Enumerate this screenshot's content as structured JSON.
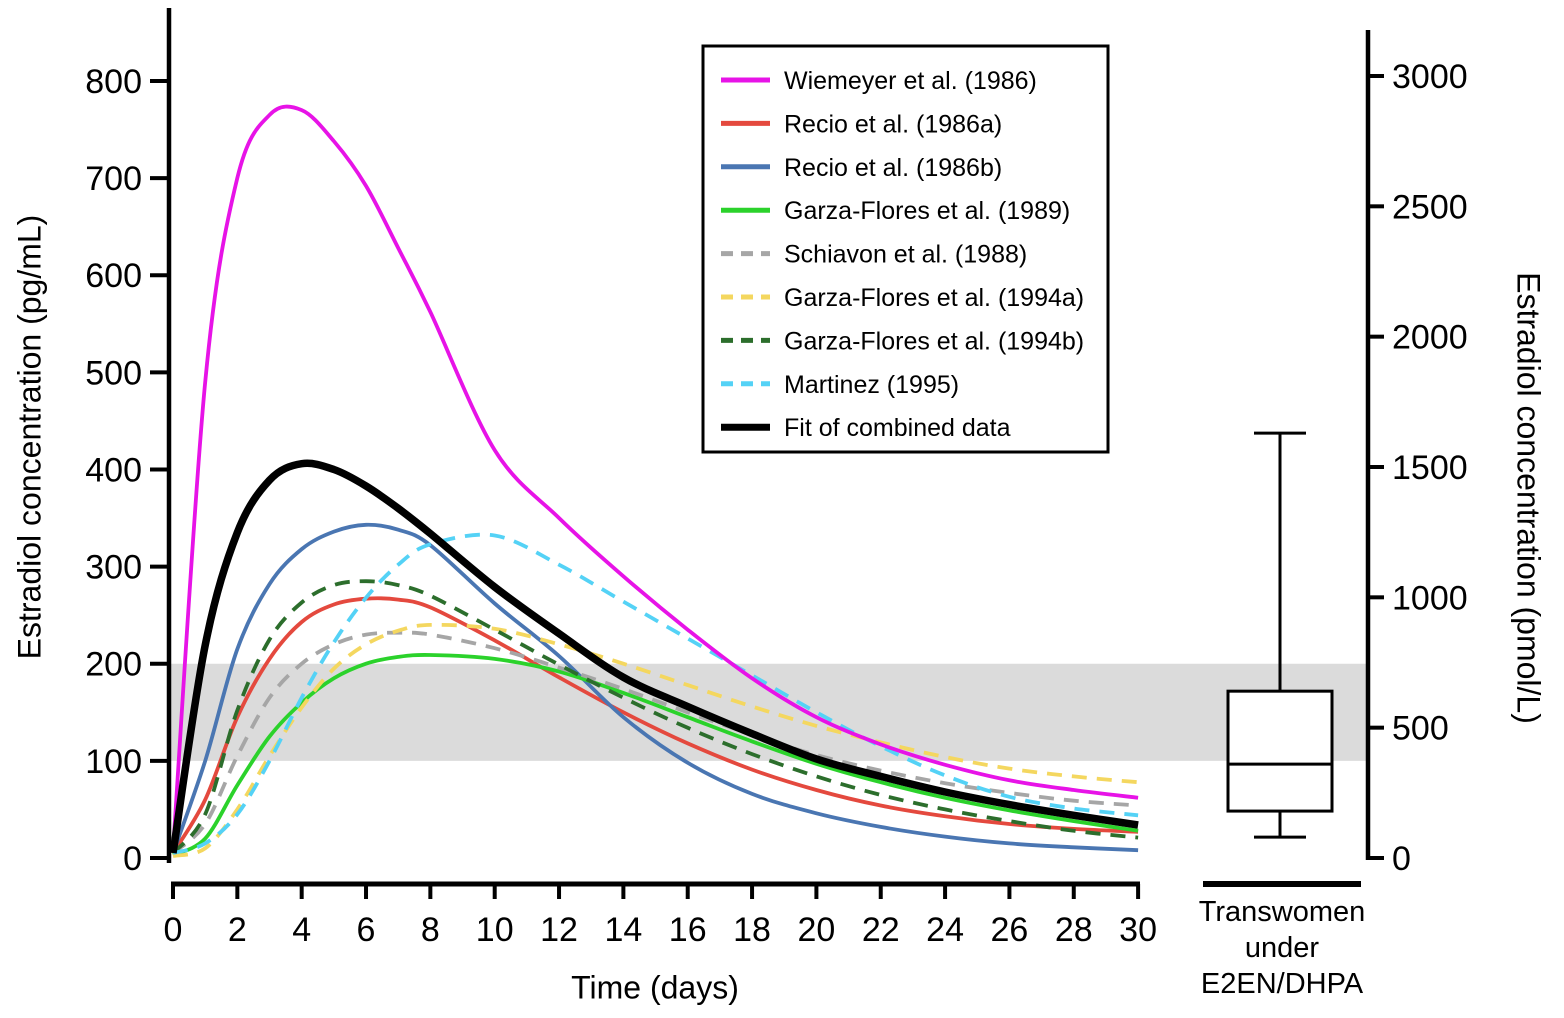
{
  "chart_data": {
    "type": "line",
    "title": "",
    "x": {
      "label": "Time (days)",
      "range": [
        0,
        30
      ],
      "ticks": [
        0,
        2,
        4,
        6,
        8,
        10,
        12,
        14,
        16,
        18,
        20,
        22,
        24,
        26,
        28,
        30
      ]
    },
    "y_left": {
      "label": "Estradiol concentration (pg/mL)",
      "units": "pg/mL",
      "range": [
        0,
        875
      ],
      "ticks": [
        0,
        100,
        200,
        300,
        400,
        500,
        600,
        700,
        800
      ]
    },
    "y_right": {
      "label": "Estradiol concentration (pmol/L)",
      "units": "pmol/L",
      "range": [
        0,
        3180
      ],
      "ticks": [
        0,
        500,
        1000,
        1500,
        2000,
        2500,
        3000
      ]
    },
    "grid": "off",
    "legend_position": "upper-center-inside",
    "reference_band": {
      "lo": 100,
      "hi": 200,
      "units": "pg/mL",
      "color": "#DBDBDB"
    },
    "sample_times_days": [
      0,
      1,
      2,
      3,
      4,
      5,
      6,
      7,
      8,
      10,
      12,
      14,
      16,
      18,
      20,
      22,
      24,
      26,
      28,
      30
    ],
    "series": [
      {
        "name": "Wiemeyer et al. (1986)",
        "color": "#E713E7",
        "style": "solid",
        "emphasis": false,
        "peak": {
          "t": 3.5,
          "value": 772
        },
        "values": [
          8,
          490,
          700,
          765,
          770,
          738,
          692,
          628,
          562,
          420,
          350,
          290,
          235,
          185,
          145,
          117,
          96,
          80,
          70,
          62
        ]
      },
      {
        "name": "Recio et al. (1986a)",
        "color": "#E4493E",
        "style": "solid",
        "emphasis": false,
        "peak": {
          "t": 6.3,
          "value": 267
        },
        "values": [
          5,
          60,
          145,
          205,
          243,
          261,
          267,
          266,
          258,
          224,
          186,
          150,
          118,
          91,
          70,
          54,
          43,
          35,
          30,
          27
        ]
      },
      {
        "name": "Recio et al. (1986b)",
        "color": "#4A76B2",
        "style": "solid",
        "emphasis": false,
        "peak": {
          "t": 6.0,
          "value": 343
        },
        "values": [
          5,
          100,
          215,
          282,
          318,
          336,
          343,
          338,
          322,
          262,
          208,
          145,
          98,
          66,
          46,
          32,
          22,
          15,
          11,
          8
        ]
      },
      {
        "name": "Garza-Flores et al. (1989)",
        "color": "#2BD22B",
        "style": "solid",
        "emphasis": false,
        "peak": {
          "t": 8.5,
          "value": 209
        },
        "values": [
          3,
          20,
          75,
          125,
          160,
          185,
          200,
          207,
          209,
          205,
          192,
          170,
          145,
          120,
          97,
          78,
          62,
          49,
          38,
          28
        ]
      },
      {
        "name": "Schiavon et al. (1988)",
        "color": "#A6A6A6",
        "style": "dashed",
        "emphasis": false,
        "peak": {
          "t": 7.0,
          "value": 232
        },
        "values": [
          5,
          35,
          105,
          165,
          200,
          220,
          230,
          232,
          230,
          216,
          196,
          174,
          150,
          127,
          106,
          90,
          77,
          67,
          59,
          54
        ]
      },
      {
        "name": "Garza-Flores et al. (1994a)",
        "color": "#F4D75F",
        "style": "dashed",
        "emphasis": false,
        "peak": {
          "t": 8.0,
          "value": 240
        },
        "values": [
          2,
          10,
          50,
          105,
          155,
          195,
          220,
          234,
          240,
          236,
          220,
          200,
          178,
          156,
          136,
          119,
          104,
          92,
          84,
          78
        ]
      },
      {
        "name": "Garza-Flores et al. (1994b)",
        "color": "#2C6E2C",
        "style": "dashed",
        "emphasis": false,
        "peak": {
          "t": 6.0,
          "value": 285
        },
        "values": [
          5,
          45,
          152,
          225,
          263,
          281,
          285,
          281,
          270,
          235,
          199,
          165,
          134,
          107,
          84,
          65,
          50,
          38,
          28,
          21
        ]
      },
      {
        "name": "Martinez (1995)",
        "color": "#54D2F6",
        "style": "dashed",
        "emphasis": false,
        "peak": {
          "t": 8.8,
          "value": 333
        },
        "values": [
          5,
          15,
          45,
          100,
          165,
          222,
          268,
          302,
          323,
          332,
          302,
          264,
          226,
          188,
          150,
          115,
          85,
          63,
          51,
          44
        ]
      },
      {
        "name": "Fit of combined data",
        "color": "#000000",
        "style": "solid",
        "emphasis": true,
        "peak": {
          "t": 4.2,
          "value": 406
        },
        "values": [
          5,
          219,
          335,
          389,
          406,
          400,
          383,
          360,
          334,
          279,
          231,
          186,
          156,
          128,
          102,
          84,
          68,
          55,
          44,
          34
        ]
      }
    ],
    "boxplot": {
      "group_label_lines": [
        "Transwomen",
        "under",
        "E2EN/DHPA"
      ],
      "units": "pmol/L",
      "min": 80,
      "q1": 180,
      "median": 360,
      "q3": 640,
      "max": 1630
    }
  }
}
